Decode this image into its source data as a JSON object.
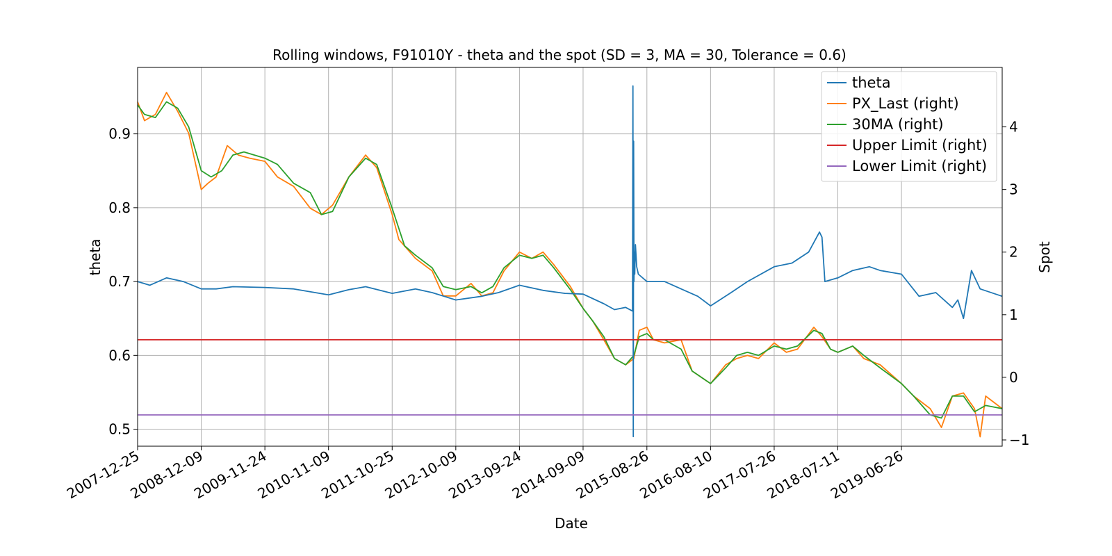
{
  "chart_data": {
    "type": "line",
    "title": "Rolling windows, F91010Y - theta and the spot (SD = 3, MA = 30, Tolerance  = 0.6)",
    "xlabel": "Date",
    "ylabel_left": "theta",
    "ylabel_right": "Spot",
    "xlim": [
      "2007-12-25",
      "2020-12-31"
    ],
    "ylim_left": [
      0.477,
      0.99
    ],
    "ylim_right": [
      -1.1,
      4.95
    ],
    "grid": true,
    "legend_position": "top-right",
    "x_tick_labels": [
      "2007-12-25",
      "2008-12-09",
      "2009-11-24",
      "2010-11-09",
      "2011-10-25",
      "2012-10-09",
      "2013-09-24",
      "2014-09-09",
      "2015-08-26",
      "2016-08-10",
      "2017-07-26",
      "2018-07-11",
      "2019-06-26"
    ],
    "y_left_ticks": [
      0.5,
      0.6,
      0.7,
      0.8,
      0.9
    ],
    "y_left_tick_labels": [
      "0.5",
      "0.6",
      "0.7",
      "0.8",
      "0.9"
    ],
    "y_right_ticks": [
      -1,
      0,
      1,
      2,
      3,
      4
    ],
    "y_right_tick_labels": [
      "−1",
      "0",
      "1",
      "2",
      "3",
      "4"
    ],
    "series": [
      {
        "name": "theta",
        "axis": "left",
        "color": "#1f77b4",
        "x": [
          "2007-12-25",
          "2008-03-01",
          "2008-06-01",
          "2008-09-01",
          "2008-12-09",
          "2009-03-01",
          "2009-06-01",
          "2009-11-24",
          "2010-05-01",
          "2010-11-09",
          "2011-03-01",
          "2011-06-01",
          "2011-10-25",
          "2012-03-01",
          "2012-06-01",
          "2012-10-09",
          "2013-03-01",
          "2013-06-01",
          "2013-09-24",
          "2014-02-01",
          "2014-06-01",
          "2014-09-09",
          "2015-01-01",
          "2015-03-01",
          "2015-05-01",
          "2015-06-08",
          "2015-06-10",
          "2015-06-12",
          "2015-06-14",
          "2015-06-16",
          "2015-06-18",
          "2015-06-20",
          "2015-06-24",
          "2015-07-01",
          "2015-07-10",
          "2015-08-26",
          "2015-12-01",
          "2016-03-01",
          "2016-06-01",
          "2016-08-10",
          "2016-12-01",
          "2017-03-01",
          "2017-07-26",
          "2017-11-01",
          "2018-02-01",
          "2018-04-01",
          "2018-04-15",
          "2018-05-01",
          "2018-07-11",
          "2018-10-01",
          "2019-01-01",
          "2019-03-01",
          "2019-06-26",
          "2019-10-01",
          "2020-01-01",
          "2020-04-01",
          "2020-05-01",
          "2020-06-01",
          "2020-07-15",
          "2020-09-01",
          "2020-12-31"
        ],
        "values": [
          0.7,
          0.695,
          0.705,
          0.7,
          0.69,
          0.69,
          0.693,
          0.692,
          0.69,
          0.682,
          0.689,
          0.693,
          0.684,
          0.69,
          0.685,
          0.675,
          0.68,
          0.685,
          0.695,
          0.688,
          0.684,
          0.683,
          0.67,
          0.662,
          0.665,
          0.66,
          0.965,
          0.49,
          0.89,
          0.7,
          0.74,
          0.71,
          0.75,
          0.72,
          0.71,
          0.7,
          0.7,
          0.69,
          0.68,
          0.667,
          0.685,
          0.7,
          0.72,
          0.725,
          0.74,
          0.767,
          0.76,
          0.7,
          0.705,
          0.715,
          0.72,
          0.715,
          0.71,
          0.68,
          0.685,
          0.665,
          0.675,
          0.65,
          0.715,
          0.69,
          0.68
        ]
      },
      {
        "name": "PX_Last (right)",
        "axis": "right",
        "color": "#ff7f0e",
        "x": [
          "2007-12-25",
          "2008-02-01",
          "2008-04-01",
          "2008-06-01",
          "2008-08-01",
          "2008-10-01",
          "2008-12-09",
          "2009-01-15",
          "2009-03-01",
          "2009-05-01",
          "2009-07-01",
          "2009-09-01",
          "2009-11-24",
          "2010-02-01",
          "2010-05-01",
          "2010-08-01",
          "2010-10-01",
          "2010-12-01",
          "2011-03-01",
          "2011-06-01",
          "2011-08-01",
          "2011-10-25",
          "2011-12-01",
          "2012-03-01",
          "2012-06-01",
          "2012-08-01",
          "2012-10-09",
          "2013-01-01",
          "2013-03-01",
          "2013-05-01",
          "2013-07-01",
          "2013-09-24",
          "2013-12-01",
          "2014-02-01",
          "2014-04-01",
          "2014-07-01",
          "2014-09-09",
          "2014-11-01",
          "2015-01-01",
          "2015-03-01",
          "2015-05-01",
          "2015-06-15",
          "2015-07-15",
          "2015-08-26",
          "2015-10-01",
          "2015-12-01",
          "2016-03-01",
          "2016-05-01",
          "2016-08-10",
          "2016-11-01",
          "2017-01-01",
          "2017-03-01",
          "2017-05-01",
          "2017-07-26",
          "2017-10-01",
          "2017-12-01",
          "2018-03-01",
          "2018-04-15",
          "2018-06-01",
          "2018-07-11",
          "2018-10-01",
          "2018-12-01",
          "2019-03-01",
          "2019-06-26",
          "2019-09-01",
          "2019-12-01",
          "2020-02-01",
          "2020-04-01",
          "2020-06-01",
          "2020-08-01",
          "2020-09-01",
          "2020-10-01",
          "2020-12-31"
        ],
        "values": [
          4.4,
          4.1,
          4.2,
          4.55,
          4.25,
          3.9,
          3.0,
          3.1,
          3.2,
          3.7,
          3.55,
          3.5,
          3.45,
          3.2,
          3.05,
          2.7,
          2.6,
          2.75,
          3.2,
          3.55,
          3.35,
          2.6,
          2.2,
          1.9,
          1.7,
          1.3,
          1.3,
          1.5,
          1.3,
          1.35,
          1.7,
          2.0,
          1.9,
          2.0,
          1.8,
          1.45,
          1.1,
          0.9,
          0.6,
          0.3,
          0.2,
          0.3,
          0.75,
          0.8,
          0.6,
          0.55,
          0.6,
          0.1,
          -0.1,
          0.2,
          0.3,
          0.35,
          0.3,
          0.55,
          0.4,
          0.45,
          0.8,
          0.65,
          0.45,
          0.4,
          0.5,
          0.3,
          0.2,
          -0.1,
          -0.3,
          -0.5,
          -0.8,
          -0.3,
          -0.25,
          -0.5,
          -0.95,
          -0.3,
          -0.5
        ]
      },
      {
        "name": "30MA (right)",
        "axis": "right",
        "color": "#2ca02c",
        "x": [
          "2007-12-25",
          "2008-02-01",
          "2008-04-01",
          "2008-06-01",
          "2008-08-01",
          "2008-10-01",
          "2008-12-09",
          "2009-02-01",
          "2009-04-01",
          "2009-06-01",
          "2009-08-01",
          "2009-11-24",
          "2010-02-01",
          "2010-05-01",
          "2010-08-01",
          "2010-10-01",
          "2010-12-01",
          "2011-03-01",
          "2011-06-01",
          "2011-08-01",
          "2011-10-25",
          "2012-01-01",
          "2012-03-01",
          "2012-06-01",
          "2012-08-01",
          "2012-10-09",
          "2013-01-01",
          "2013-03-01",
          "2013-05-01",
          "2013-07-01",
          "2013-09-24",
          "2013-12-01",
          "2014-02-01",
          "2014-04-01",
          "2014-07-01",
          "2014-09-09",
          "2014-11-01",
          "2015-01-01",
          "2015-03-01",
          "2015-05-01",
          "2015-06-15",
          "2015-07-15",
          "2015-08-26",
          "2015-10-01",
          "2015-12-01",
          "2016-03-01",
          "2016-05-01",
          "2016-08-10",
          "2016-11-01",
          "2017-01-01",
          "2017-03-01",
          "2017-05-01",
          "2017-07-26",
          "2017-10-01",
          "2017-12-01",
          "2018-03-01",
          "2018-04-15",
          "2018-06-01",
          "2018-07-11",
          "2018-10-01",
          "2018-12-01",
          "2019-03-01",
          "2019-06-26",
          "2019-09-01",
          "2019-12-01",
          "2020-02-01",
          "2020-04-01",
          "2020-06-01",
          "2020-08-01",
          "2020-10-01",
          "2020-12-31"
        ],
        "values": [
          4.35,
          4.2,
          4.15,
          4.4,
          4.3,
          4.0,
          3.3,
          3.2,
          3.3,
          3.55,
          3.6,
          3.5,
          3.4,
          3.1,
          2.95,
          2.6,
          2.65,
          3.2,
          3.5,
          3.4,
          2.7,
          2.1,
          1.95,
          1.75,
          1.45,
          1.4,
          1.45,
          1.35,
          1.45,
          1.75,
          1.95,
          1.9,
          1.95,
          1.75,
          1.4,
          1.1,
          0.9,
          0.65,
          0.3,
          0.2,
          0.35,
          0.65,
          0.7,
          0.6,
          0.6,
          0.45,
          0.1,
          -0.1,
          0.15,
          0.35,
          0.4,
          0.35,
          0.5,
          0.45,
          0.5,
          0.75,
          0.7,
          0.45,
          0.4,
          0.5,
          0.35,
          0.15,
          -0.1,
          -0.3,
          -0.6,
          -0.65,
          -0.3,
          -0.3,
          -0.55,
          -0.45,
          -0.5
        ]
      },
      {
        "name": "Upper Limit (right)",
        "axis": "right",
        "color": "#d62728",
        "x": [
          "2007-12-25",
          "2020-12-31"
        ],
        "values": [
          0.6,
          0.6
        ]
      },
      {
        "name": "Lower Limit (right)",
        "axis": "right",
        "color": "#9467bd",
        "x": [
          "2007-12-25",
          "2020-12-31"
        ],
        "values": [
          -0.6,
          -0.6
        ]
      }
    ]
  }
}
